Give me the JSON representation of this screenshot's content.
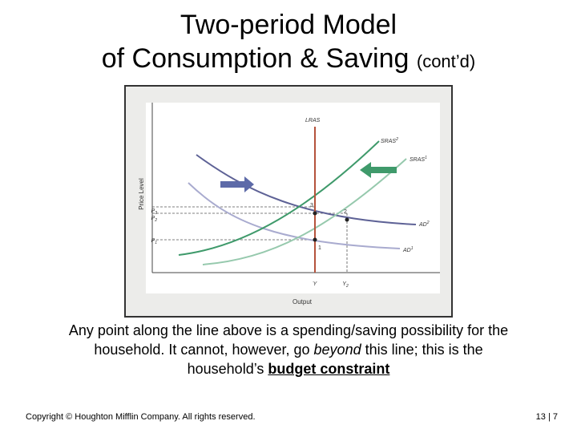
{
  "title": {
    "line1": "Two-period Model",
    "line2_main": "of Consumption & Saving",
    "line2_suffix": "(cont’d)"
  },
  "diagram": {
    "y_axis_label": "Price Level",
    "x_axis_label": "Output",
    "curves": {
      "lras": "LRAS",
      "sras2": "SRAS",
      "sras2_sup": "2",
      "sras1": "SRAS",
      "sras1_sup": "1",
      "ad2": "AD",
      "ad2_sup": "2",
      "ad1": "AD",
      "ad1_sup": "1"
    },
    "price_ticks": {
      "p3": "P",
      "p3_sub": "3",
      "p2": "P",
      "p2_sub": "2",
      "p1": "P",
      "p1_sub": "1"
    },
    "output_ticks": {
      "ybar": "Y",
      "y2": "Y",
      "y2_sub": "2"
    },
    "points": {
      "p1": "1",
      "p2": "2",
      "p3": "3"
    },
    "colors": {
      "lras": "#b5533c",
      "sras2": "#3f9a6b",
      "sras1": "#96c9ad",
      "ad2": "#5e6296",
      "ad1": "#a9abcf",
      "arrow_right": "#5d6aa8",
      "arrow_left": "#3f9a6b"
    }
  },
  "caption": {
    "part1": "Any point along the line above is a spending/saving possibility for the",
    "part2": "household. It cannot, however, go ",
    "italic": "beyond",
    "part3": " this line; this is the",
    "part4": "household’s ",
    "bold": "budget constraint"
  },
  "footer": {
    "copyright": "Copyright © Houghton Mifflin Company.  All rights reserved.",
    "page": "13 | 7"
  }
}
